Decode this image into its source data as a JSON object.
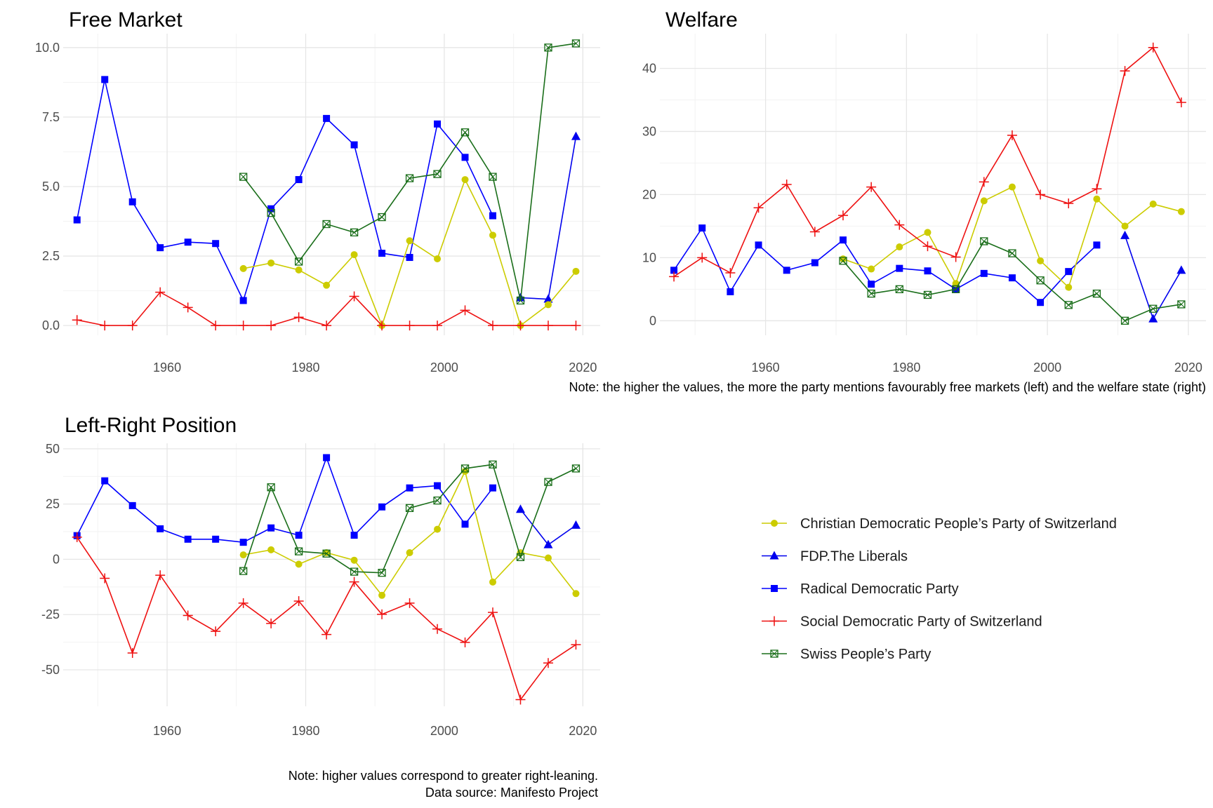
{
  "colors": {
    "Christian Democratic People’s Party of Switzerland": "#cccc00",
    "FDP.The Liberals": "#0000ee",
    "Radical Democratic Party": "#0000ff",
    "Social Democratic Party of Switzerland": "#ee1111",
    "Swiss People’s Party": "#1a6e1a"
  },
  "markers": {
    "Christian Democratic People’s Party of Switzerland": "circle",
    "FDP.The Liberals": "triangle",
    "Radical Democratic Party": "square",
    "Social Democratic Party of Switzerland": "plus",
    "Swiss People’s Party": "boxed-x"
  },
  "legend": {
    "position": "right",
    "items": [
      "Christian Democratic People’s Party of Switzerland",
      "FDP.The Liberals",
      "Radical Democratic Party",
      "Social Democratic Party of Switzerland",
      "Swiss People’s Party"
    ]
  },
  "notes": {
    "top": "Note: the higher the values, the more the party mentions favourably free markets (left) and the welfare state (right)",
    "bottom_line1": "Note: higher values correspond to greater right-leaning.",
    "bottom_line2": "Data source: Manifesto Project"
  },
  "chart_data": [
    {
      "type": "line",
      "title": "Free Market",
      "xlabel": "",
      "ylabel": "",
      "xlim": [
        1945,
        2022.5
      ],
      "ylim": [
        -0.35,
        10.5
      ],
      "xticks": [
        1960,
        1980,
        2000,
        2020
      ],
      "yticks": [
        0,
        2.5,
        5,
        7.5,
        10
      ],
      "ytick_labels": [
        "0.0",
        "2.5",
        "5.0",
        "7.5",
        "10.0"
      ],
      "grid": true,
      "series": [
        {
          "name": "Radical Democratic Party",
          "x": [
            1947,
            1951,
            1955,
            1959,
            1963,
            1967,
            1971,
            1975,
            1979,
            1983,
            1987,
            1991,
            1995,
            1999,
            2003,
            2007
          ],
          "y": [
            3.8,
            8.85,
            4.45,
            2.8,
            3.0,
            2.95,
            0.9,
            4.2,
            5.25,
            7.45,
            6.5,
            2.6,
            2.45,
            7.25,
            6.05,
            3.95
          ]
        },
        {
          "name": "FDP.The Liberals",
          "x": [
            2011,
            2015,
            2019
          ],
          "y": [
            1.0,
            0.95,
            6.8
          ]
        },
        {
          "name": "Christian Democratic People’s Party of Switzerland",
          "x": [
            1971,
            1975,
            1979,
            1983,
            1987,
            1991,
            1995,
            1999,
            2003,
            2007,
            2011,
            2015,
            2019
          ],
          "y": [
            2.05,
            2.25,
            2.0,
            1.45,
            2.55,
            0.0,
            3.05,
            2.4,
            5.25,
            3.25,
            0.0,
            0.75,
            1.95
          ]
        },
        {
          "name": "Social Democratic Party of Switzerland",
          "x": [
            1947,
            1951,
            1955,
            1959,
            1963,
            1967,
            1971,
            1975,
            1979,
            1983,
            1987,
            1991,
            1995,
            1999,
            2003,
            2007,
            2011,
            2015,
            2019
          ],
          "y": [
            0.2,
            0.0,
            0.0,
            1.2,
            0.65,
            0.0,
            0.0,
            0.0,
            0.3,
            0.0,
            1.05,
            0.0,
            0.0,
            0.0,
            0.55,
            0.0,
            0.0,
            0.0,
            0.0
          ]
        },
        {
          "name": "Swiss People’s Party",
          "x": [
            1971,
            1975,
            1979,
            1983,
            1987,
            1991,
            1995,
            1999,
            2003,
            2007,
            2011,
            2015,
            2019
          ],
          "y": [
            5.35,
            4.05,
            2.3,
            3.65,
            3.35,
            3.9,
            5.3,
            5.45,
            6.95,
            5.35,
            0.9,
            10.0,
            10.15
          ]
        }
      ]
    },
    {
      "type": "line",
      "title": "Welfare",
      "xlabel": "",
      "ylabel": "",
      "xlim": [
        1945,
        2022.5
      ],
      "ylim": [
        -2.3,
        45.5
      ],
      "xticks": [
        1960,
        1980,
        2000,
        2020
      ],
      "yticks": [
        0,
        10,
        20,
        30,
        40
      ],
      "ytick_labels": [
        "0",
        "10",
        "20",
        "30",
        "40"
      ],
      "grid": true,
      "series": [
        {
          "name": "Radical Democratic Party",
          "x": [
            1947,
            1951,
            1955,
            1959,
            1963,
            1967,
            1971,
            1975,
            1979,
            1983,
            1987,
            1991,
            1995,
            1999,
            2003,
            2007
          ],
          "y": [
            8.0,
            14.7,
            4.6,
            12.0,
            8.0,
            9.2,
            12.8,
            5.8,
            8.3,
            7.9,
            5.0,
            7.5,
            6.8,
            2.9,
            7.8,
            12.0
          ]
        },
        {
          "name": "FDP.The Liberals",
          "x": [
            2011,
            2015,
            2019
          ],
          "y": [
            13.5,
            0.3,
            8.0
          ]
        },
        {
          "name": "Christian Democratic People’s Party of Switzerland",
          "x": [
            1971,
            1975,
            1979,
            1983,
            1987,
            1991,
            1995,
            1999,
            2003,
            2007,
            2011,
            2015,
            2019
          ],
          "y": [
            9.8,
            8.2,
            11.7,
            14.0,
            5.9,
            19.0,
            21.2,
            9.5,
            5.3,
            19.3,
            15.0,
            18.5,
            17.3
          ]
        },
        {
          "name": "Social Democratic Party of Switzerland",
          "x": [
            1947,
            1951,
            1955,
            1959,
            1963,
            1967,
            1971,
            1975,
            1979,
            1983,
            1987,
            1991,
            1995,
            1999,
            2003,
            2007,
            2011,
            2015,
            2019
          ],
          "y": [
            7.0,
            10.0,
            7.6,
            17.9,
            21.6,
            14.1,
            16.7,
            21.2,
            15.2,
            11.8,
            10.1,
            22.0,
            29.4,
            20.0,
            18.6,
            20.9,
            39.6,
            43.3,
            34.6
          ]
        },
        {
          "name": "Swiss People’s Party",
          "x": [
            1971,
            1975,
            1979,
            1983,
            1987,
            1991,
            1995,
            1999,
            2003,
            2007,
            2011,
            2015,
            2019
          ],
          "y": [
            9.5,
            4.3,
            5.0,
            4.1,
            5.0,
            12.6,
            10.7,
            6.4,
            2.5,
            4.3,
            0.0,
            1.9,
            2.6
          ]
        }
      ]
    },
    {
      "type": "line",
      "title": "Left-Right Position",
      "xlabel": "",
      "ylabel": "",
      "xlim": [
        1945,
        2022.5
      ],
      "ylim": [
        -66.5,
        52.5
      ],
      "xticks": [
        1960,
        1980,
        2000,
        2020
      ],
      "yticks": [
        -50,
        -25,
        0,
        25,
        50
      ],
      "ytick_labels": [
        "-50",
        "-25",
        "0",
        "25",
        "50"
      ],
      "grid": true,
      "series": [
        {
          "name": "Radical Democratic Party",
          "x": [
            1947,
            1951,
            1955,
            1959,
            1963,
            1967,
            1971,
            1975,
            1979,
            1983,
            1987,
            1991,
            1995,
            1999,
            2003,
            2007
          ],
          "y": [
            10.7,
            35.5,
            24.3,
            13.8,
            9.1,
            9.1,
            7.7,
            14.2,
            10.9,
            46.0,
            10.9,
            23.7,
            32.3,
            33.3,
            15.9,
            32.3
          ]
        },
        {
          "name": "FDP.The Liberals",
          "x": [
            2011,
            2015,
            2019
          ],
          "y": [
            22.6,
            6.6,
            15.4
          ]
        },
        {
          "name": "Christian Democratic People’s Party of Switzerland",
          "x": [
            1971,
            1975,
            1979,
            1983,
            1987,
            1991,
            1995,
            1999,
            2003,
            2007,
            2011,
            2015,
            2019
          ],
          "y": [
            2.0,
            4.3,
            -2.2,
            3.0,
            -0.4,
            -16.3,
            3.0,
            13.6,
            39.8,
            -10.3,
            3.0,
            0.6,
            -15.5
          ]
        },
        {
          "name": "Social Democratic Party of Switzerland",
          "x": [
            1947,
            1951,
            1955,
            1959,
            1963,
            1967,
            1971,
            1975,
            1979,
            1983,
            1987,
            1991,
            1995,
            1999,
            2003,
            2007,
            2011,
            2015,
            2019
          ],
          "y": [
            10.0,
            -8.6,
            -42.4,
            -7.2,
            -25.4,
            -32.6,
            -19.8,
            -29.0,
            -18.9,
            -34.0,
            -10.2,
            -24.9,
            -19.8,
            -31.5,
            -37.6,
            -24.0,
            -63.5,
            -46.9,
            -38.6
          ]
        },
        {
          "name": "Swiss People’s Party",
          "x": [
            1971,
            1975,
            1979,
            1983,
            1987,
            1991,
            1995,
            1999,
            2003,
            2007,
            2011,
            2015,
            2019
          ],
          "y": [
            -5.3,
            32.6,
            3.6,
            2.6,
            -5.6,
            -6.1,
            23.2,
            26.6,
            41.1,
            42.9,
            1.0,
            35.0,
            41.1
          ]
        }
      ]
    }
  ]
}
